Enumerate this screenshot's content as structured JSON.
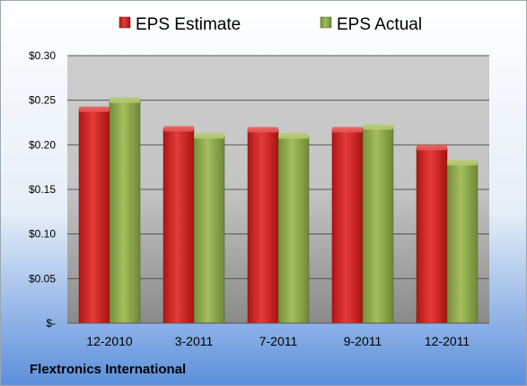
{
  "chart_data": {
    "type": "bar",
    "title": "",
    "xlabel": "",
    "ylabel": "",
    "categories": [
      "12-2010",
      "3-2011",
      "7-2011",
      "9-2011",
      "12-2011"
    ],
    "series": [
      {
        "name": "EPS Estimate",
        "color": "#cc1f1f",
        "values": [
          0.24,
          0.218,
          0.217,
          0.217,
          0.197
        ]
      },
      {
        "name": "EPS Actual",
        "color": "#8fa84a",
        "values": [
          0.25,
          0.21,
          0.21,
          0.22,
          0.18
        ]
      }
    ],
    "ylim": [
      0,
      0.3
    ],
    "yticks": [
      0,
      0.05,
      0.1,
      0.15,
      0.2,
      0.25,
      0.3
    ],
    "ytick_labels": [
      "$-",
      "$0.05",
      "$0.10",
      "$0.15",
      "$0.20",
      "$0.25",
      "$0.30"
    ],
    "grid": true,
    "legend_position": "top-center"
  },
  "footer": {
    "company": "Flextronics International"
  },
  "colors": {
    "background_top": "#ffffff",
    "background_bottom": "#5b8fdc",
    "plot_top": "#c8c8c8",
    "plot_bottom": "#8c8c8c",
    "gridline": "#555555"
  }
}
